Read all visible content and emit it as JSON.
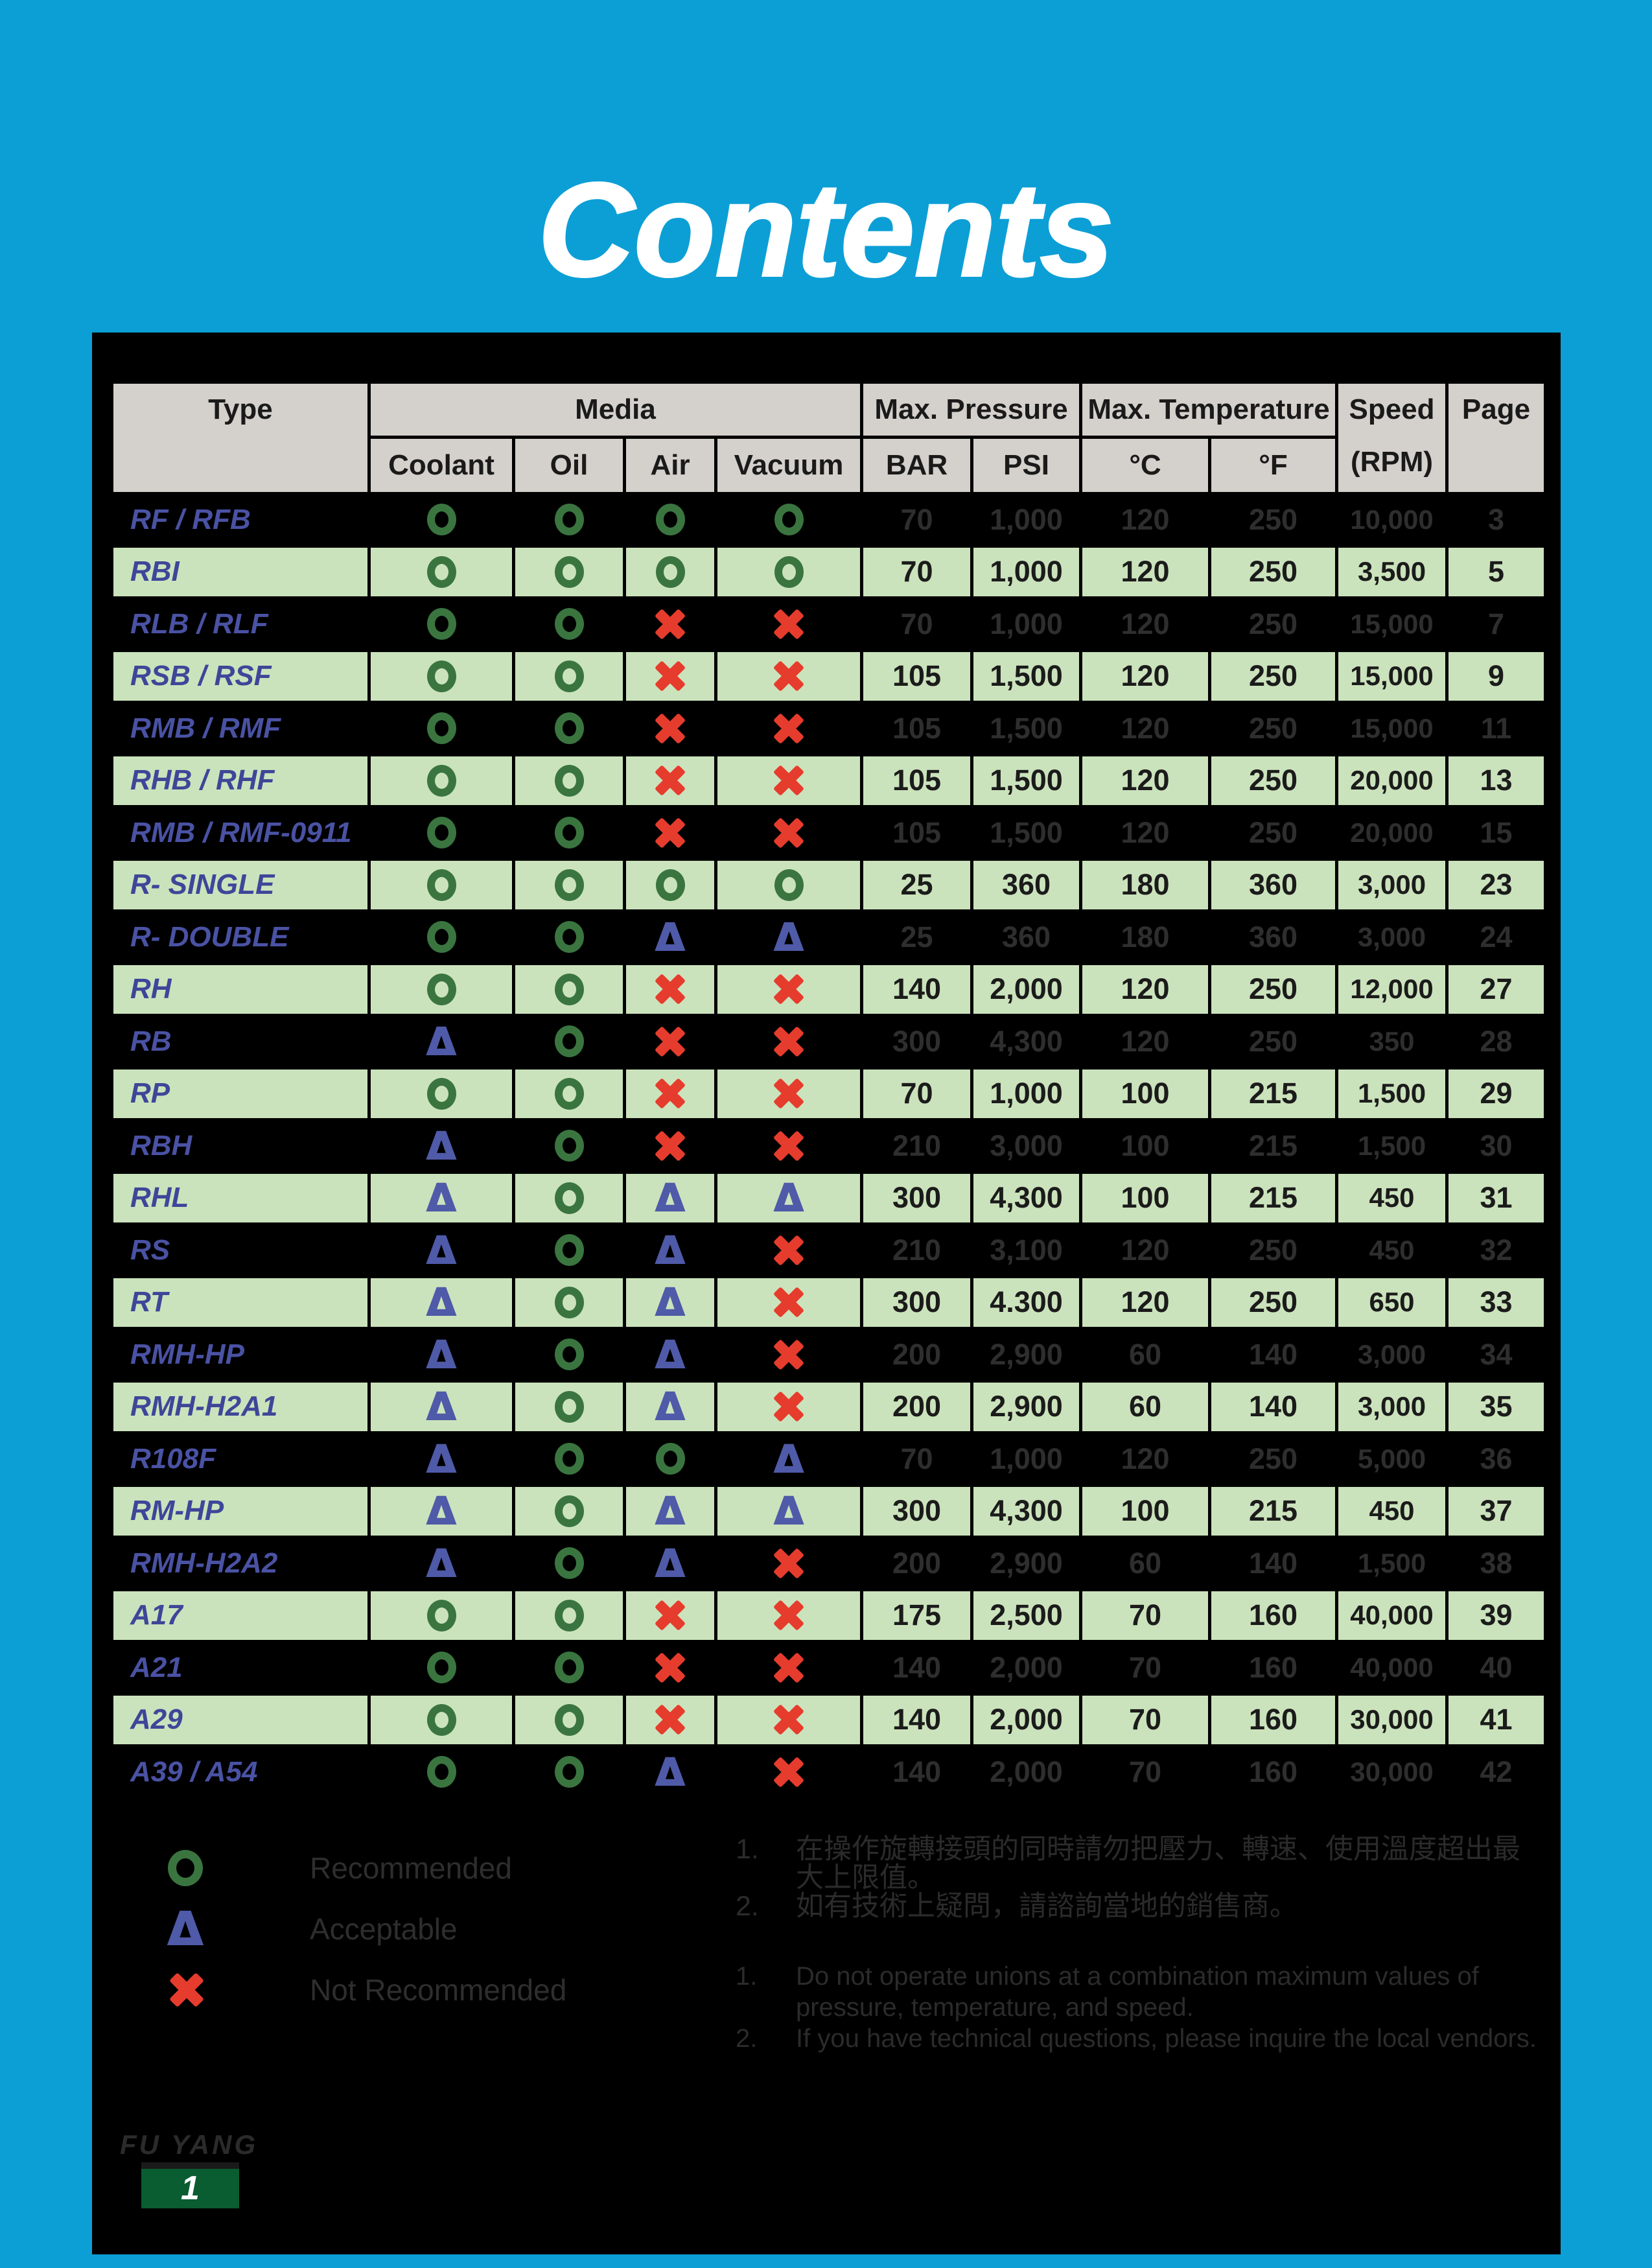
{
  "title": "Contents",
  "table": {
    "headers": {
      "type": "Type",
      "media": "Media",
      "max_pressure": "Max. Pressure",
      "max_temperature": "Max. Temperature",
      "speed": "Speed",
      "speed_unit": "(RPM)",
      "page": "Page",
      "media_cols": [
        "Coolant",
        "Oil",
        "Air",
        "Vacuum"
      ],
      "pressure_cols": [
        "BAR",
        "PSI"
      ],
      "temperature_cols": [
        "°C",
        "°F"
      ]
    },
    "rows": [
      {
        "type": "RF / RFB",
        "coolant": "recommended",
        "oil": "recommended",
        "air": "recommended",
        "vacuum": "recommended",
        "bar": "70",
        "psi": "1,000",
        "c": "120",
        "f": "250",
        "speed": "10,000",
        "page": "3",
        "shade": "dark"
      },
      {
        "type": "RBI",
        "coolant": "recommended",
        "oil": "recommended",
        "air": "recommended",
        "vacuum": "recommended",
        "bar": "70",
        "psi": "1,000",
        "c": "120",
        "f": "250",
        "speed": "3,500",
        "page": "5",
        "shade": "green"
      },
      {
        "type": "RLB / RLF",
        "coolant": "recommended",
        "oil": "recommended",
        "air": "not_recommended",
        "vacuum": "not_recommended",
        "bar": "70",
        "psi": "1,000",
        "c": "120",
        "f": "250",
        "speed": "15,000",
        "page": "7",
        "shade": "dark"
      },
      {
        "type": "RSB / RSF",
        "coolant": "recommended",
        "oil": "recommended",
        "air": "not_recommended",
        "vacuum": "not_recommended",
        "bar": "105",
        "psi": "1,500",
        "c": "120",
        "f": "250",
        "speed": "15,000",
        "page": "9",
        "shade": "green"
      },
      {
        "type": "RMB / RMF",
        "coolant": "recommended",
        "oil": "recommended",
        "air": "not_recommended",
        "vacuum": "not_recommended",
        "bar": "105",
        "psi": "1,500",
        "c": "120",
        "f": "250",
        "speed": "15,000",
        "page": "11",
        "shade": "dark"
      },
      {
        "type": "RHB / RHF",
        "coolant": "recommended",
        "oil": "recommended",
        "air": "not_recommended",
        "vacuum": "not_recommended",
        "bar": "105",
        "psi": "1,500",
        "c": "120",
        "f": "250",
        "speed": "20,000",
        "page": "13",
        "shade": "green"
      },
      {
        "type": "RMB / RMF-0911",
        "coolant": "recommended",
        "oil": "recommended",
        "air": "not_recommended",
        "vacuum": "not_recommended",
        "bar": "105",
        "psi": "1,500",
        "c": "120",
        "f": "250",
        "speed": "20,000",
        "page": "15",
        "shade": "dark"
      },
      {
        "type": "R- SINGLE",
        "coolant": "recommended",
        "oil": "recommended",
        "air": "recommended",
        "vacuum": "recommended",
        "bar": "25",
        "psi": "360",
        "c": "180",
        "f": "360",
        "speed": "3,000",
        "page": "23",
        "shade": "green"
      },
      {
        "type": "R- DOUBLE",
        "coolant": "recommended",
        "oil": "recommended",
        "air": "acceptable",
        "vacuum": "acceptable",
        "bar": "25",
        "psi": "360",
        "c": "180",
        "f": "360",
        "speed": "3,000",
        "page": "24",
        "shade": "dark"
      },
      {
        "type": "RH",
        "coolant": "recommended",
        "oil": "recommended",
        "air": "not_recommended",
        "vacuum": "not_recommended",
        "bar": "140",
        "psi": "2,000",
        "c": "120",
        "f": "250",
        "speed": "12,000",
        "page": "27",
        "shade": "green"
      },
      {
        "type": "RB",
        "coolant": "acceptable",
        "oil": "recommended",
        "air": "not_recommended",
        "vacuum": "not_recommended",
        "bar": "300",
        "psi": "4,300",
        "c": "120",
        "f": "250",
        "speed": "350",
        "page": "28",
        "shade": "dark"
      },
      {
        "type": "RP",
        "coolant": "recommended",
        "oil": "recommended",
        "air": "not_recommended",
        "vacuum": "not_recommended",
        "bar": "70",
        "psi": "1,000",
        "c": "100",
        "f": "215",
        "speed": "1,500",
        "page": "29",
        "shade": "green"
      },
      {
        "type": "RBH",
        "coolant": "acceptable",
        "oil": "recommended",
        "air": "not_recommended",
        "vacuum": "not_recommended",
        "bar": "210",
        "psi": "3,000",
        "c": "100",
        "f": "215",
        "speed": "1,500",
        "page": "30",
        "shade": "dark"
      },
      {
        "type": "RHL",
        "coolant": "acceptable",
        "oil": "recommended",
        "air": "acceptable",
        "vacuum": "acceptable",
        "bar": "300",
        "psi": "4,300",
        "c": "100",
        "f": "215",
        "speed": "450",
        "page": "31",
        "shade": "green"
      },
      {
        "type": "RS",
        "coolant": "acceptable",
        "oil": "recommended",
        "air": "acceptable",
        "vacuum": "not_recommended",
        "bar": "210",
        "psi": "3,100",
        "c": "120",
        "f": "250",
        "speed": "450",
        "page": "32",
        "shade": "dark"
      },
      {
        "type": "RT",
        "coolant": "acceptable",
        "oil": "recommended",
        "air": "acceptable",
        "vacuum": "not_recommended",
        "bar": "300",
        "psi": "4.300",
        "c": "120",
        "f": "250",
        "speed": "650",
        "page": "33",
        "shade": "green"
      },
      {
        "type": "RMH-HP",
        "coolant": "acceptable",
        "oil": "recommended",
        "air": "acceptable",
        "vacuum": "not_recommended",
        "bar": "200",
        "psi": "2,900",
        "c": "60",
        "f": "140",
        "speed": "3,000",
        "page": "34",
        "shade": "dark"
      },
      {
        "type": "RMH-H2A1",
        "coolant": "acceptable",
        "oil": "recommended",
        "air": "acceptable",
        "vacuum": "not_recommended",
        "bar": "200",
        "psi": "2,900",
        "c": "60",
        "f": "140",
        "speed": "3,000",
        "page": "35",
        "shade": "green"
      },
      {
        "type": "R108F",
        "coolant": "acceptable",
        "oil": "recommended",
        "air": "recommended",
        "vacuum": "acceptable",
        "bar": "70",
        "psi": "1,000",
        "c": "120",
        "f": "250",
        "speed": "5,000",
        "page": "36",
        "shade": "dark"
      },
      {
        "type": "RM-HP",
        "coolant": "acceptable",
        "oil": "recommended",
        "air": "acceptable",
        "vacuum": "acceptable",
        "bar": "300",
        "psi": "4,300",
        "c": "100",
        "f": "215",
        "speed": "450",
        "page": "37",
        "shade": "green"
      },
      {
        "type": "RMH-H2A2",
        "coolant": "acceptable",
        "oil": "recommended",
        "air": "acceptable",
        "vacuum": "not_recommended",
        "bar": "200",
        "psi": "2,900",
        "c": "60",
        "f": "140",
        "speed": "1,500",
        "page": "38",
        "shade": "dark"
      },
      {
        "type": "A17",
        "coolant": "recommended",
        "oil": "recommended",
        "air": "not_recommended",
        "vacuum": "not_recommended",
        "bar": "175",
        "psi": "2,500",
        "c": "70",
        "f": "160",
        "speed": "40,000",
        "page": "39",
        "shade": "green"
      },
      {
        "type": "A21",
        "coolant": "recommended",
        "oil": "recommended",
        "air": "not_recommended",
        "vacuum": "not_recommended",
        "bar": "140",
        "psi": "2,000",
        "c": "70",
        "f": "160",
        "speed": "40,000",
        "page": "40",
        "shade": "dark"
      },
      {
        "type": "A29",
        "coolant": "recommended",
        "oil": "recommended",
        "air": "not_recommended",
        "vacuum": "not_recommended",
        "bar": "140",
        "psi": "2,000",
        "c": "70",
        "f": "160",
        "speed": "30,000",
        "page": "41",
        "shade": "green"
      },
      {
        "type": "A39 / A54",
        "coolant": "recommended",
        "oil": "recommended",
        "air": "acceptable",
        "vacuum": "not_recommended",
        "bar": "140",
        "psi": "2,000",
        "c": "70",
        "f": "160",
        "speed": "30,000",
        "page": "42",
        "shade": "dark"
      }
    ]
  },
  "legend": [
    {
      "symbol": "recommended",
      "label": "Recommended"
    },
    {
      "symbol": "acceptable",
      "label": "Acceptable"
    },
    {
      "symbol": "not_recommended",
      "label": "Not Recommended"
    }
  ],
  "notes_zh": [
    {
      "num": "1.",
      "lines": [
        "在操作旋轉接頭的同時請勿把壓力、轉速、使用溫度超出最",
        "大上限值。"
      ]
    },
    {
      "num": "2.",
      "lines": [
        "如有技術上疑問，請諮詢當地的銷售商。"
      ]
    }
  ],
  "notes_en": [
    {
      "num": "1.",
      "lines": [
        "Do not operate unions at a combination maximum values of",
        "pressure, temperature, and speed."
      ]
    },
    {
      "num": "2.",
      "lines": [
        "If you have technical questions, please inquire the local vendors."
      ]
    }
  ],
  "footer": {
    "brand": "FU YANG",
    "page_number": "1"
  },
  "colors": {
    "background": "#0c9fd6",
    "panel": "#000000",
    "header_bg": "#d4d0cb",
    "row_green": "#cbe3bc",
    "type_blue": "#3e4699",
    "recommended_green": "#3a7540",
    "acceptable_blue": "#4f5aa8",
    "not_recommended_red": "#e63c2d",
    "page_box_green": "#0a5c31"
  }
}
